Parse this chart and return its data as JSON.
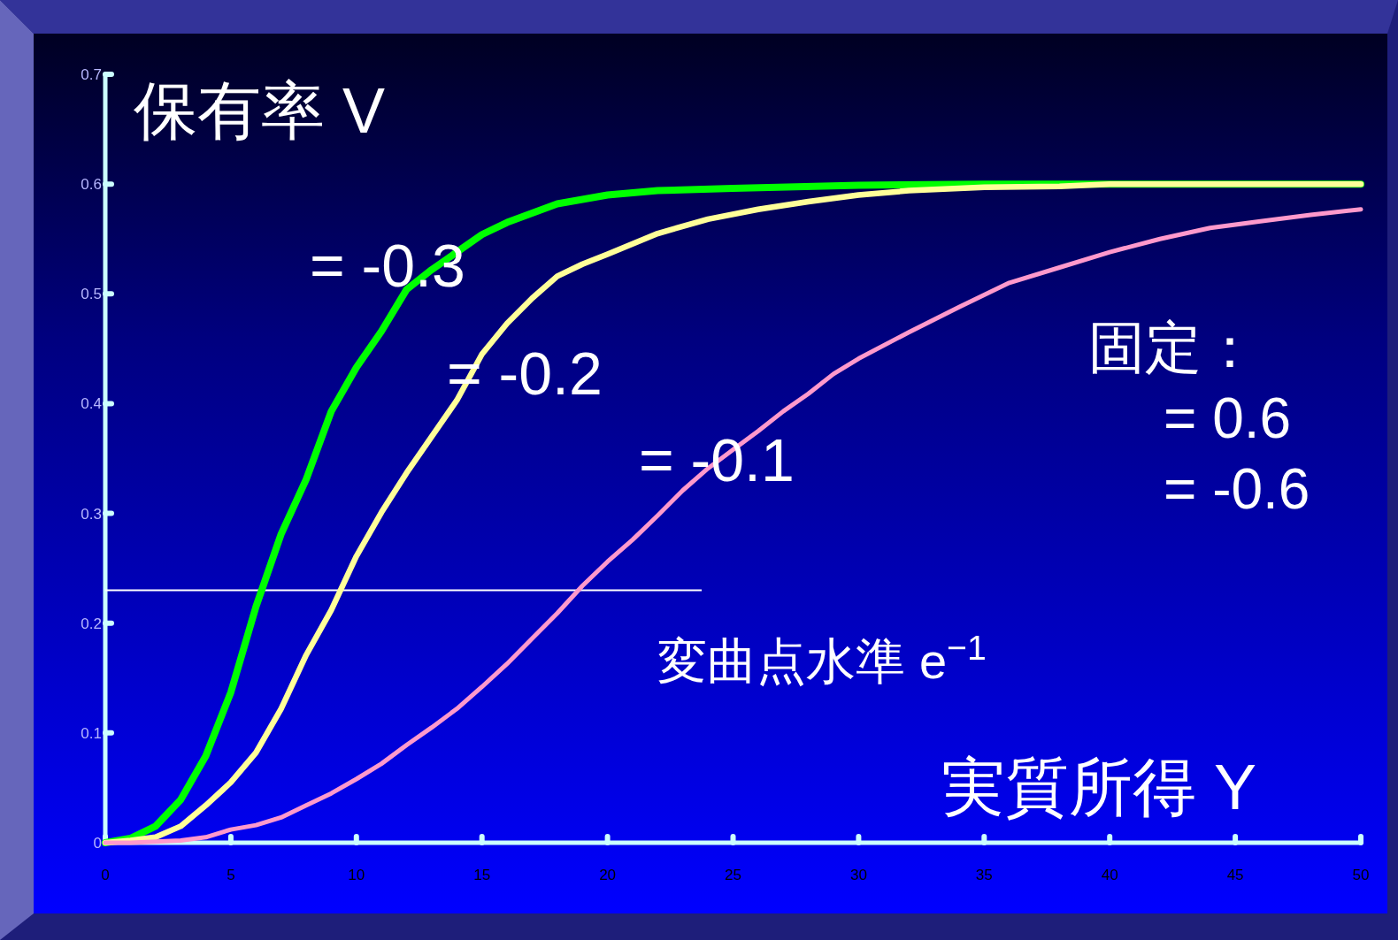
{
  "chart_data": {
    "type": "line",
    "xlabel": "実質所得 Y",
    "ylabel": "保有率 V",
    "xlim": [
      0,
      50
    ],
    "xticks": [
      0,
      5,
      10,
      15,
      20,
      25,
      30,
      35,
      40,
      45,
      50
    ],
    "ylim": [
      0,
      0.7
    ],
    "yticks": [
      0,
      0.1,
      0.2,
      0.3,
      0.4,
      0.5,
      0.6,
      0.7
    ],
    "series": [
      {
        "color": "#00ff00",
        "x": [
          0,
          1,
          2,
          3,
          4,
          5,
          6,
          7,
          8,
          9,
          10,
          11,
          12,
          13,
          14,
          15,
          16,
          18,
          20,
          22,
          25,
          30,
          35,
          40,
          45,
          50
        ],
        "values": [
          0,
          0.004,
          0.015,
          0.039,
          0.079,
          0.137,
          0.215,
          0.281,
          0.331,
          0.393,
          0.433,
          0.466,
          0.504,
          0.522,
          0.538,
          0.554,
          0.565,
          0.582,
          0.59,
          0.594,
          0.596,
          0.599,
          0.6,
          0.6,
          0.6,
          0.6
        ]
      },
      {
        "color": "#ffff99",
        "x": [
          0,
          1,
          2,
          3,
          4,
          5,
          6,
          7,
          8,
          9,
          10,
          11,
          12,
          13,
          14,
          15,
          16,
          17,
          18,
          19,
          20,
          22,
          24,
          26,
          28,
          30,
          32,
          35,
          38,
          40,
          45,
          50
        ],
        "values": [
          0,
          0.002,
          0.005,
          0.015,
          0.034,
          0.055,
          0.082,
          0.122,
          0.171,
          0.212,
          0.261,
          0.301,
          0.337,
          0.37,
          0.403,
          0.445,
          0.473,
          0.496,
          0.516,
          0.527,
          0.536,
          0.555,
          0.568,
          0.577,
          0.584,
          0.59,
          0.594,
          0.597,
          0.598,
          0.6,
          0.6,
          0.6
        ]
      },
      {
        "color": "#ff99cc",
        "x": [
          0,
          1,
          2,
          3,
          4,
          5,
          6,
          7,
          8,
          9,
          10,
          11,
          12,
          13,
          14,
          15,
          16,
          17,
          18,
          19,
          20,
          21,
          22,
          23,
          24,
          25,
          26,
          27,
          28,
          29,
          30,
          32,
          34,
          36,
          38,
          40,
          42,
          44,
          46,
          48,
          50
        ],
        "values": [
          0,
          0,
          0.001,
          0.002,
          0.005,
          0.012,
          0.016,
          0.023,
          0.034,
          0.045,
          0.058,
          0.072,
          0.089,
          0.105,
          0.122,
          0.142,
          0.163,
          0.186,
          0.209,
          0.234,
          0.256,
          0.276,
          0.298,
          0.321,
          0.341,
          0.358,
          0.375,
          0.393,
          0.409,
          0.427,
          0.441,
          0.465,
          0.488,
          0.51,
          0.524,
          0.538,
          0.55,
          0.56,
          0.566,
          0.572,
          0.577
        ]
      }
    ],
    "ref_lines": [
      {
        "axis": "y",
        "value": 0.23,
        "label": "変曲点水準  e$^{−1}$",
        "color": "#ffffff"
      }
    ],
    "annotations": [
      "= -0.3",
      "= -0.2",
      "= -0.1",
      "固定：",
      "= 0.6",
      "= -0.6"
    ]
  }
}
